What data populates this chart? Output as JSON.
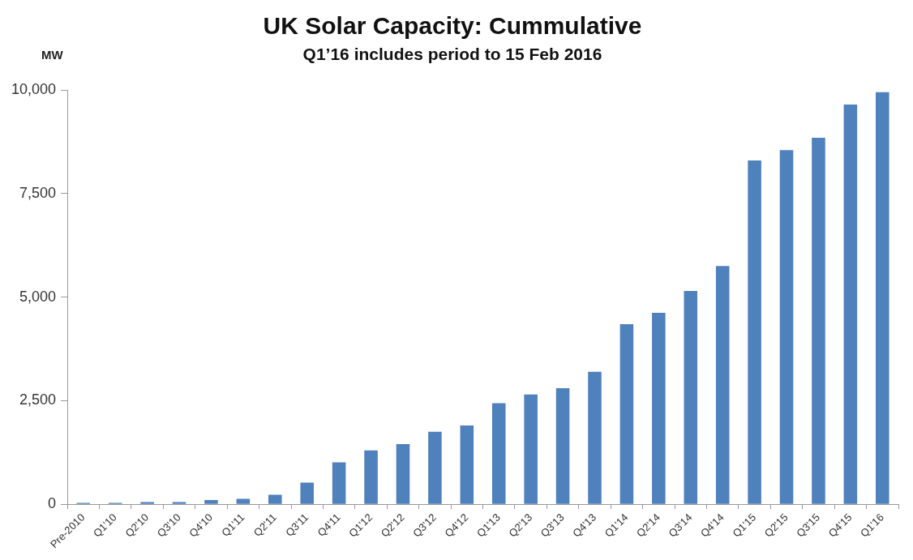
{
  "chart_data": {
    "type": "bar",
    "title": "UK Solar Capacity: Cummulative",
    "subtitle": "Q1’16 includes period to 15 Feb 2016",
    "ylabel": "MW",
    "categories": [
      "Pre-2010",
      "Q1'10",
      "Q2'10",
      "Q3'10",
      "Q4'10",
      "Q1'11",
      "Q2'11",
      "Q3'11",
      "Q4'11",
      "Q1'12",
      "Q2'12",
      "Q3'12",
      "Q4'12",
      "Q1'13",
      "Q2'13",
      "Q3'13",
      "Q4'13",
      "Q1'14",
      "Q2'14",
      "Q3'14",
      "Q4'14",
      "Q1'15",
      "Q2'15",
      "Q3'15",
      "Q4'15",
      "Q1'16"
    ],
    "values": [
      30,
      30,
      50,
      50,
      100,
      130,
      230,
      520,
      1010,
      1300,
      1450,
      1750,
      1900,
      2440,
      2650,
      2800,
      3200,
      4350,
      4620,
      5150,
      5750,
      8300,
      8550,
      8850,
      9650,
      9950
    ],
    "color": "#4f81bd",
    "ylim": [
      0,
      10000
    ],
    "yticks": [
      {
        "value": 0,
        "label": "0"
      },
      {
        "value": 2500,
        "label": "2,500"
      },
      {
        "value": 5000,
        "label": "5,000"
      },
      {
        "value": 7500,
        "label": "7,500"
      },
      {
        "value": 10000,
        "label": "10,000"
      }
    ],
    "grid": false,
    "legend": false
  }
}
